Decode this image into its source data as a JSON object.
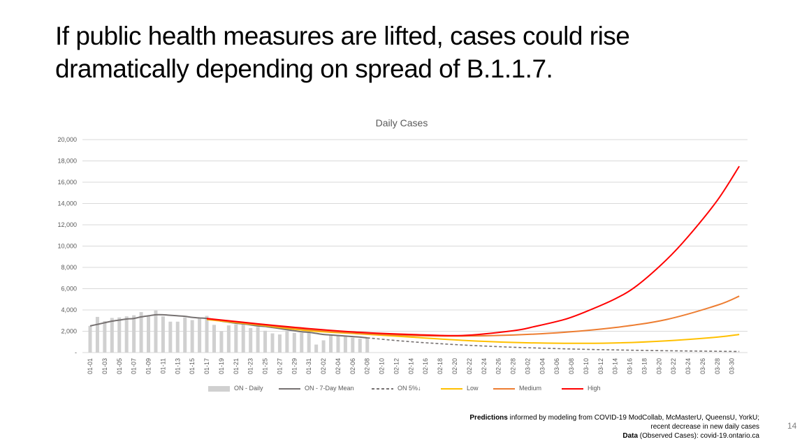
{
  "slide": {
    "title": "If public health measures are lifted, cases could rise dramatically depending on spread of B.1.1.7.",
    "page_number": "14"
  },
  "footer": {
    "line1_bold": "Predictions",
    "line1_rest": " informed by modeling from COVID-19 ModCollab, McMasterU, QueensU, YorkU;",
    "line2": "recent decrease in new daily cases",
    "line3_bold": "Data",
    "line3_rest": " (Observed Cases): covid-19.ontario.ca"
  },
  "chart_data": {
    "type": "bar",
    "title": "Daily Cases",
    "xlabel": "",
    "ylabel": "",
    "ylim": [
      0,
      20000
    ],
    "yticks": [
      0,
      2000,
      4000,
      6000,
      8000,
      10000,
      12000,
      14000,
      16000,
      18000,
      20000
    ],
    "ytick_labels": [
      "-",
      "2,000",
      "4,000",
      "6,000",
      "8,000",
      "10,000",
      "12,000",
      "14,000",
      "16,000",
      "18,000",
      "20,000"
    ],
    "grid": true,
    "legend_position": "bottom",
    "x_range": [
      "01-01",
      "03-31"
    ],
    "x_tick_labels": [
      "01-01",
      "01-03",
      "01-05",
      "01-07",
      "01-09",
      "01-11",
      "01-13",
      "01-15",
      "01-17",
      "01-19",
      "01-21",
      "01-23",
      "01-25",
      "01-27",
      "01-29",
      "01-31",
      "02-02",
      "02-04",
      "02-06",
      "02-08",
      "02-10",
      "02-12",
      "02-14",
      "02-16",
      "02-18",
      "02-20",
      "02-22",
      "02-24",
      "02-26",
      "02-28",
      "03-02",
      "03-04",
      "03-06",
      "03-08",
      "03-10",
      "03-12",
      "03-14",
      "03-16",
      "03-18",
      "03-20",
      "03-22",
      "03-24",
      "03-26",
      "03-28",
      "03-30"
    ],
    "series": [
      {
        "name": "ON - Daily",
        "kind": "bar",
        "color": "#d0d0d0",
        "x": [
          "01-01",
          "01-02",
          "01-03",
          "01-04",
          "01-05",
          "01-06",
          "01-07",
          "01-08",
          "01-09",
          "01-10",
          "01-11",
          "01-12",
          "01-13",
          "01-14",
          "01-15",
          "01-16",
          "01-17",
          "01-18",
          "01-19",
          "01-20",
          "01-21",
          "01-22",
          "01-23",
          "01-24",
          "01-25",
          "01-26",
          "01-27",
          "01-28",
          "01-29",
          "01-30",
          "01-31",
          "02-01",
          "02-02",
          "02-03",
          "02-04",
          "02-05",
          "02-06",
          "02-07",
          "02-08"
        ],
        "values": [
          2500,
          3350,
          2950,
          3250,
          3300,
          3400,
          3500,
          3800,
          3500,
          3950,
          3400,
          2900,
          2900,
          3300,
          3050,
          3200,
          3450,
          2600,
          2000,
          2550,
          2650,
          2650,
          2300,
          2400,
          2050,
          1800,
          1700,
          2050,
          1850,
          1850,
          1850,
          750,
          1150,
          1600,
          1600,
          1500,
          1400,
          1300,
          1400
        ]
      },
      {
        "name": "ON - 7-Day Mean",
        "kind": "line",
        "color": "#767171",
        "x": [
          "01-01",
          "01-02",
          "01-03",
          "01-04",
          "01-05",
          "01-06",
          "01-07",
          "01-08",
          "01-09",
          "01-10",
          "01-11",
          "01-12",
          "01-13",
          "01-14",
          "01-15",
          "01-16",
          "01-17",
          "01-18",
          "01-19",
          "01-20",
          "01-21",
          "01-22",
          "01-23",
          "01-24",
          "01-25",
          "01-26",
          "01-27",
          "01-28",
          "01-29",
          "01-30",
          "01-31",
          "02-01",
          "02-02",
          "02-03",
          "02-04",
          "02-05",
          "02-06",
          "02-07",
          "02-08"
        ],
        "values": [
          2500,
          2650,
          2800,
          2950,
          3050,
          3150,
          3200,
          3350,
          3450,
          3550,
          3550,
          3500,
          3450,
          3400,
          3300,
          3250,
          3200,
          3100,
          2950,
          2850,
          2750,
          2700,
          2600,
          2500,
          2450,
          2350,
          2250,
          2150,
          2050,
          1950,
          1900,
          1800,
          1700,
          1650,
          1600,
          1550,
          1500,
          1450,
          1380
        ]
      },
      {
        "name": "ON 5%↓",
        "kind": "dashed-line",
        "color": "#767171",
        "x": [
          "02-08",
          "02-13",
          "02-18",
          "02-23",
          "02-28",
          "03-05",
          "03-10",
          "03-15",
          "03-20",
          "03-25",
          "03-31"
        ],
        "values": [
          1380,
          1070,
          830,
          645,
          500,
          390,
          300,
          235,
          180,
          140,
          100
        ]
      },
      {
        "name": "Low",
        "kind": "line",
        "color": "#ffc000",
        "x": [
          "01-17",
          "01-24",
          "01-31",
          "02-07",
          "02-14",
          "02-21",
          "02-28",
          "03-07",
          "03-14",
          "03-21",
          "03-28",
          "03-31"
        ],
        "values": [
          3100,
          2600,
          2050,
          1750,
          1450,
          1150,
          950,
          870,
          900,
          1100,
          1450,
          1700
        ]
      },
      {
        "name": "Medium",
        "kind": "line",
        "color": "#ed7d31",
        "x": [
          "01-17",
          "01-24",
          "01-31",
          "02-07",
          "02-14",
          "02-21",
          "02-28",
          "03-07",
          "03-14",
          "03-21",
          "03-28",
          "03-31"
        ],
        "values": [
          3150,
          2650,
          2150,
          1800,
          1600,
          1550,
          1650,
          1900,
          2350,
          3100,
          4450,
          5300
        ]
      },
      {
        "name": "High",
        "kind": "line",
        "color": "#ff0000",
        "x": [
          "01-17",
          "01-24",
          "01-31",
          "02-07",
          "02-14",
          "02-21",
          "02-28",
          "03-03",
          "03-07",
          "03-10",
          "03-14",
          "03-17",
          "03-21",
          "03-24",
          "03-28",
          "03-31"
        ],
        "values": [
          3200,
          2700,
          2250,
          1900,
          1700,
          1600,
          2050,
          2450,
          3100,
          3850,
          5050,
          6300,
          8700,
          10900,
          14300,
          17500
        ]
      }
    ]
  }
}
